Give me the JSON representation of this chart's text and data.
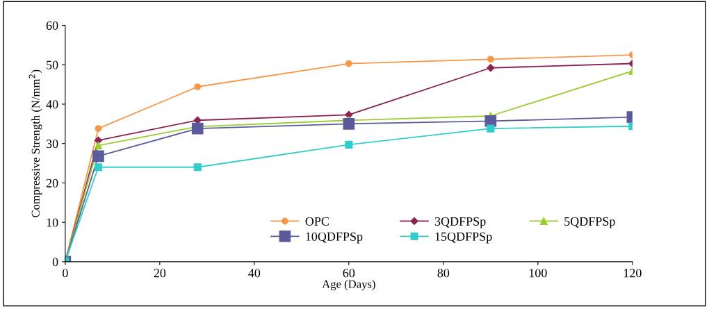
{
  "chart_data": {
    "type": "line",
    "xlabel": "Age (Days)",
    "ylabel": "Compressive Strength (N/mm$^{2}$)",
    "xlim": [
      0,
      120
    ],
    "xticks": [
      0,
      20,
      40,
      60,
      80,
      100,
      120
    ],
    "ylim": [
      0,
      60
    ],
    "yticks": [
      0,
      10,
      20,
      30,
      40,
      50,
      60
    ],
    "x": [
      0,
      7,
      28,
      60,
      90,
      120
    ],
    "grid": false,
    "legend": "bottom right",
    "series": [
      {
        "name": "OPC",
        "color": "#f79646",
        "marker": "circle",
        "values": [
          0,
          33.8,
          44.4,
          50.3,
          51.4,
          52.5
        ]
      },
      {
        "name": "3QDFPSp",
        "color": "#8b2252",
        "marker": "diamond",
        "values": [
          0,
          30.8,
          35.9,
          37.3,
          49.2,
          50.3
        ]
      },
      {
        "name": "5QDFPSp",
        "color": "#9acd32",
        "marker": "triangle",
        "values": [
          0,
          29.5,
          34.3,
          35.9,
          37.0,
          48.4
        ]
      },
      {
        "name": "10QDFPSp",
        "color": "#5b5b9b",
        "marker": "square",
        "values": [
          0,
          26.8,
          33.8,
          35.0,
          35.7,
          36.7
        ]
      },
      {
        "name": "15QDFPSp",
        "color": "#33cccc",
        "marker": "square",
        "values": [
          0,
          24.0,
          24.0,
          29.7,
          33.8,
          34.4
        ]
      }
    ]
  }
}
